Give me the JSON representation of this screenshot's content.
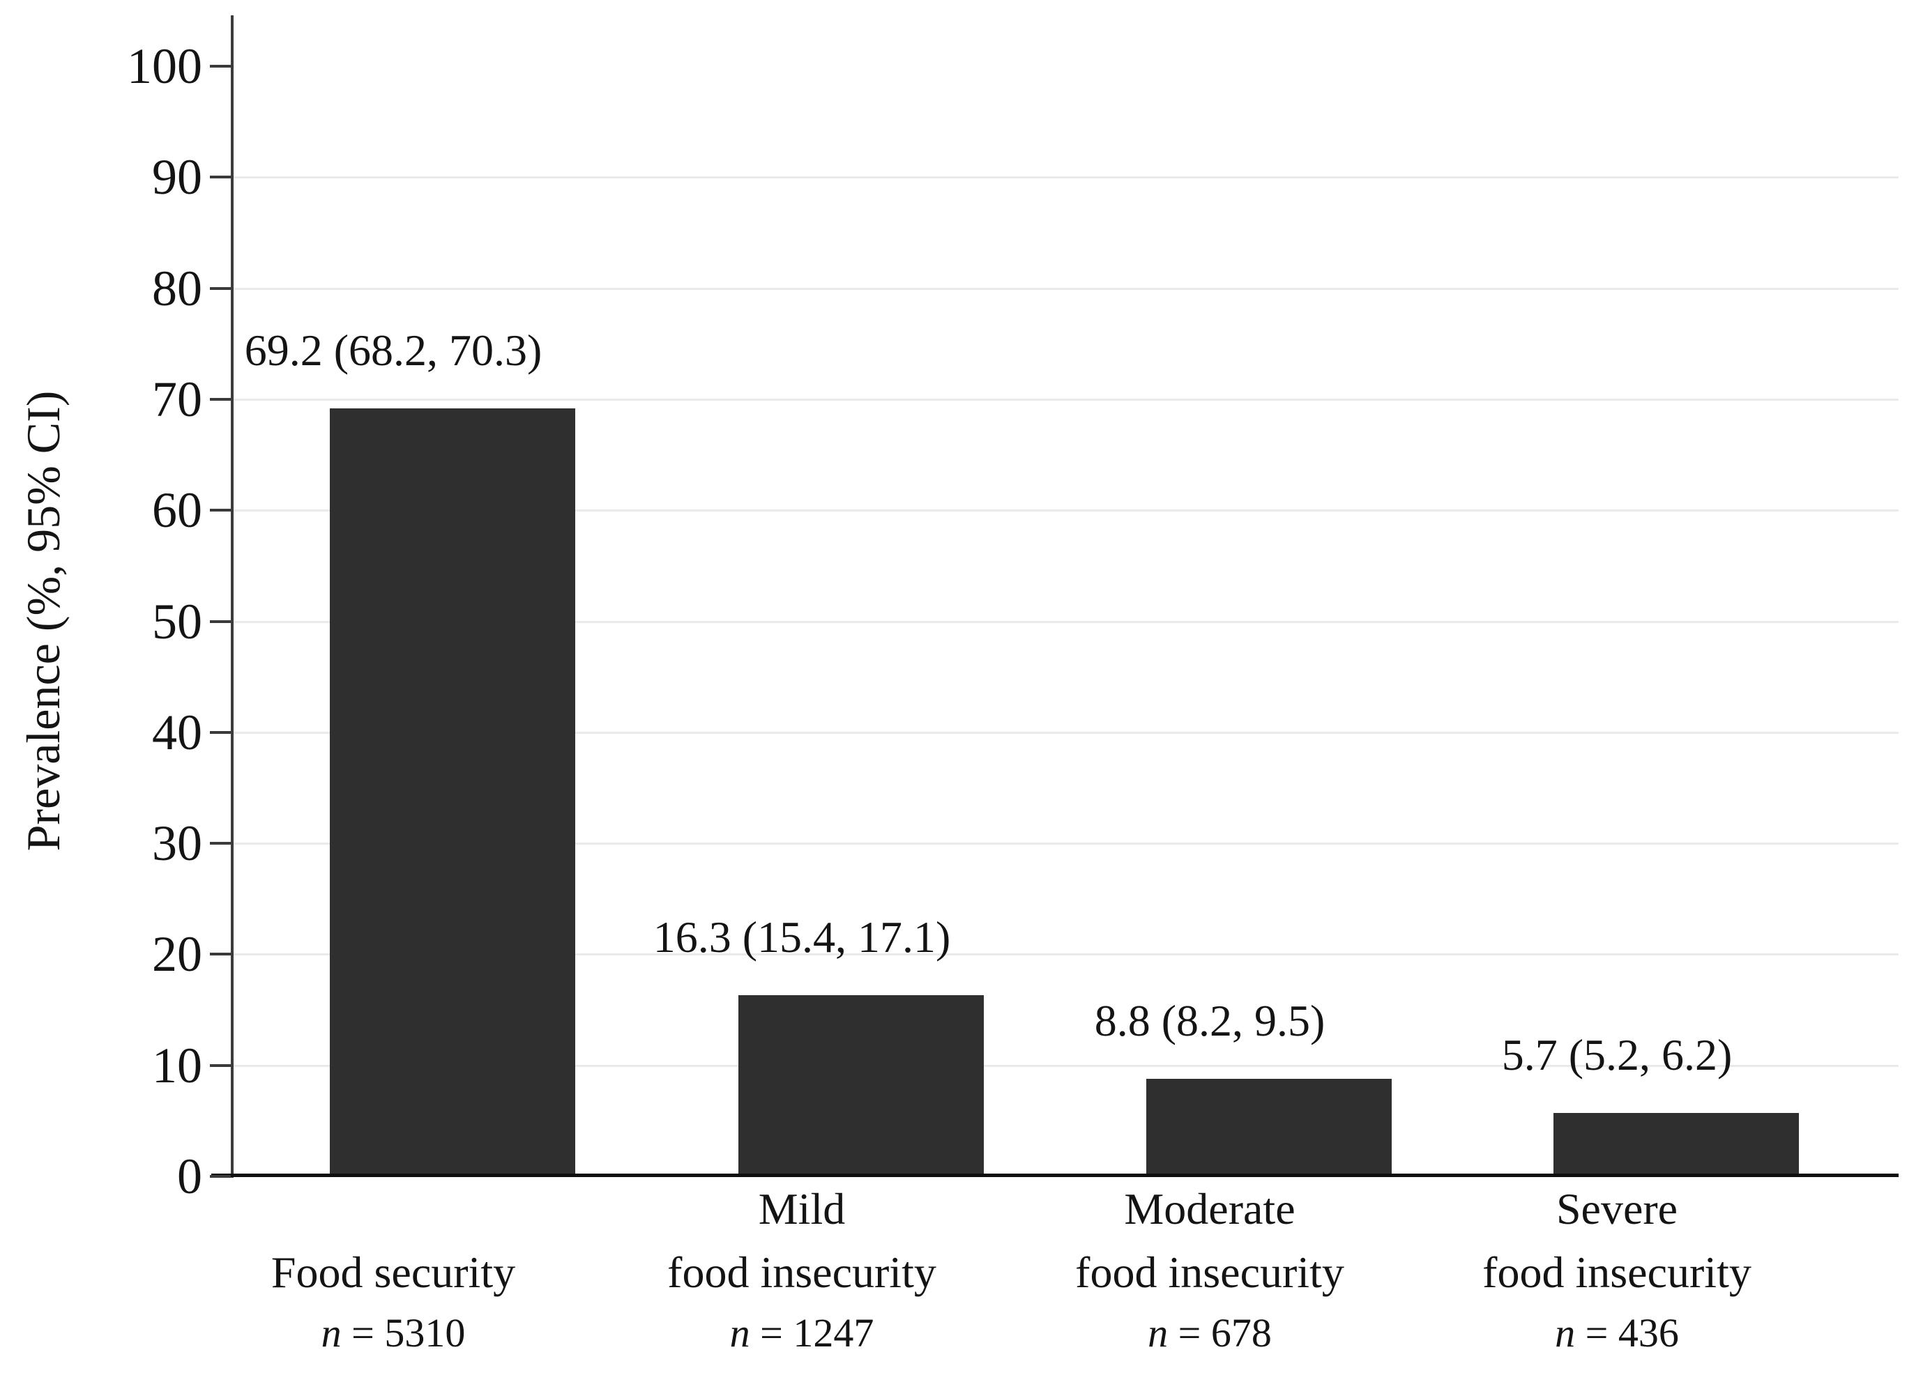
{
  "chart_data": {
    "type": "bar",
    "title": "",
    "xlabel": "",
    "ylabel": "Prevalence (%, 95% CI)",
    "ylim": [
      0,
      100
    ],
    "yticks": [
      0,
      10,
      20,
      30,
      40,
      50,
      60,
      70,
      80,
      90,
      100
    ],
    "grid": "horizontal light gray lines at 10-90",
    "legend": "none",
    "bar_color": "#2f2f30",
    "categories": [
      "Food security",
      "Mild food insecurity",
      "Moderate food insecurity",
      "Severe food insecurity"
    ],
    "values": [
      69.2,
      16.3,
      8.8,
      5.7
    ],
    "ci_95_lower": [
      68.2,
      15.4,
      8.2,
      5.2
    ],
    "ci_95_upper": [
      70.3,
      17.1,
      9.5,
      6.2
    ],
    "sample_sizes": [
      5310,
      1247,
      678,
      436
    ],
    "bars": [
      {
        "category_lines": [
          "Food security"
        ],
        "value": 69.2,
        "value_label": "69.2 (68.2, 70.3)",
        "n_italic": "n",
        "n_rest": "= 5310"
      },
      {
        "category_lines": [
          "Mild",
          "food insecurity"
        ],
        "value": 16.3,
        "value_label": "16.3 (15.4, 17.1)",
        "n_italic": "n",
        "n_rest": "= 1247"
      },
      {
        "category_lines": [
          "Moderate",
          "food insecurity"
        ],
        "value": 8.8,
        "value_label": "8.8 (8.2, 9.5)",
        "n_italic": "n",
        "n_rest": "= 678"
      },
      {
        "category_lines": [
          "Severe",
          "food insecurity"
        ],
        "value": 5.7,
        "value_label": "5.7 (5.2, 6.2)",
        "n_italic": "n",
        "n_rest": "= 436"
      }
    ]
  }
}
